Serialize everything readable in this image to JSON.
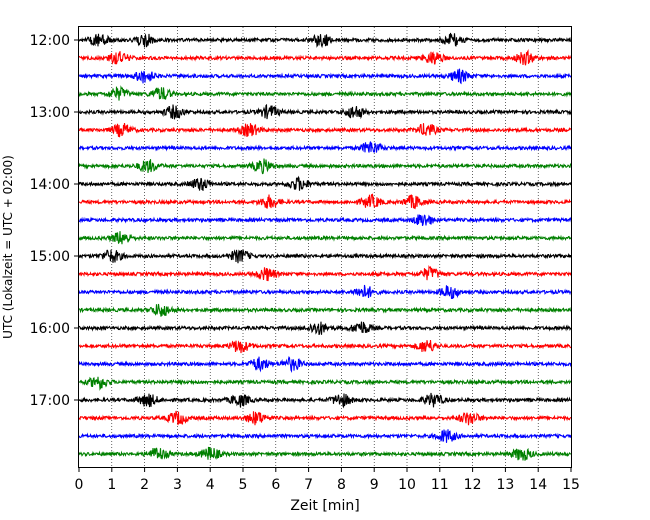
{
  "chart_data": {
    "type": "line",
    "xlabel": "Zeit  [min]",
    "ylabel": "UTC (Lokalzeit = UTC + 02:00)",
    "xlim": [
      0,
      15
    ],
    "xticks": [
      0,
      1,
      2,
      3,
      4,
      5,
      6,
      7,
      8,
      9,
      10,
      11,
      12,
      13,
      14,
      15
    ],
    "yticks": [
      "12:00",
      "13:00",
      "14:00",
      "15:00",
      "16:00",
      "17:00"
    ],
    "grid": "vertical dotted",
    "colors": [
      "#000000",
      "#ff0000",
      "#0000ff",
      "#008000"
    ],
    "start": "12:00",
    "trace_minutes": 15,
    "trace_count": 24,
    "events": [
      {
        "trace": "12:00",
        "at": [
          0.6,
          2.0,
          7.4,
          11.4
        ]
      },
      {
        "trace": "12:15",
        "at": [
          1.2,
          10.8,
          13.6
        ]
      },
      {
        "trace": "12:30",
        "at": [
          2.0,
          11.6
        ]
      },
      {
        "trace": "12:45",
        "at": [
          1.2,
          2.5
        ]
      },
      {
        "trace": "13:00",
        "at": [
          2.9,
          5.8,
          8.4
        ]
      },
      {
        "trace": "13:15",
        "at": [
          1.3,
          5.2,
          10.6
        ]
      },
      {
        "trace": "13:30",
        "at": [
          8.9
        ]
      },
      {
        "trace": "13:45",
        "at": [
          2.1,
          5.6
        ]
      },
      {
        "trace": "14:00",
        "at": [
          3.7,
          6.7
        ]
      },
      {
        "trace": "14:15",
        "at": [
          5.8,
          8.9,
          10.2
        ]
      },
      {
        "trace": "14:30",
        "at": [
          10.5
        ]
      },
      {
        "trace": "14:45",
        "at": [
          1.3
        ]
      },
      {
        "trace": "15:00",
        "at": [
          1.0,
          4.9
        ]
      },
      {
        "trace": "15:15",
        "at": [
          5.7,
          10.7
        ]
      },
      {
        "trace": "15:30",
        "at": [
          8.7,
          11.3
        ]
      },
      {
        "trace": "15:45",
        "at": [
          2.5
        ]
      },
      {
        "trace": "16:00",
        "at": [
          7.3,
          8.6
        ]
      },
      {
        "trace": "16:15",
        "at": [
          4.9,
          10.6
        ]
      },
      {
        "trace": "16:30",
        "at": [
          5.5,
          6.5
        ]
      },
      {
        "trace": "16:45",
        "at": [
          0.6
        ]
      },
      {
        "trace": "17:00",
        "at": [
          2.1,
          4.9,
          8.0,
          10.8
        ]
      },
      {
        "trace": "17:15",
        "at": [
          3.0,
          5.4,
          11.9
        ]
      },
      {
        "trace": "17:30",
        "at": [
          11.2
        ]
      },
      {
        "trace": "17:45",
        "at": [
          2.4,
          4.0,
          13.5
        ]
      }
    ]
  }
}
